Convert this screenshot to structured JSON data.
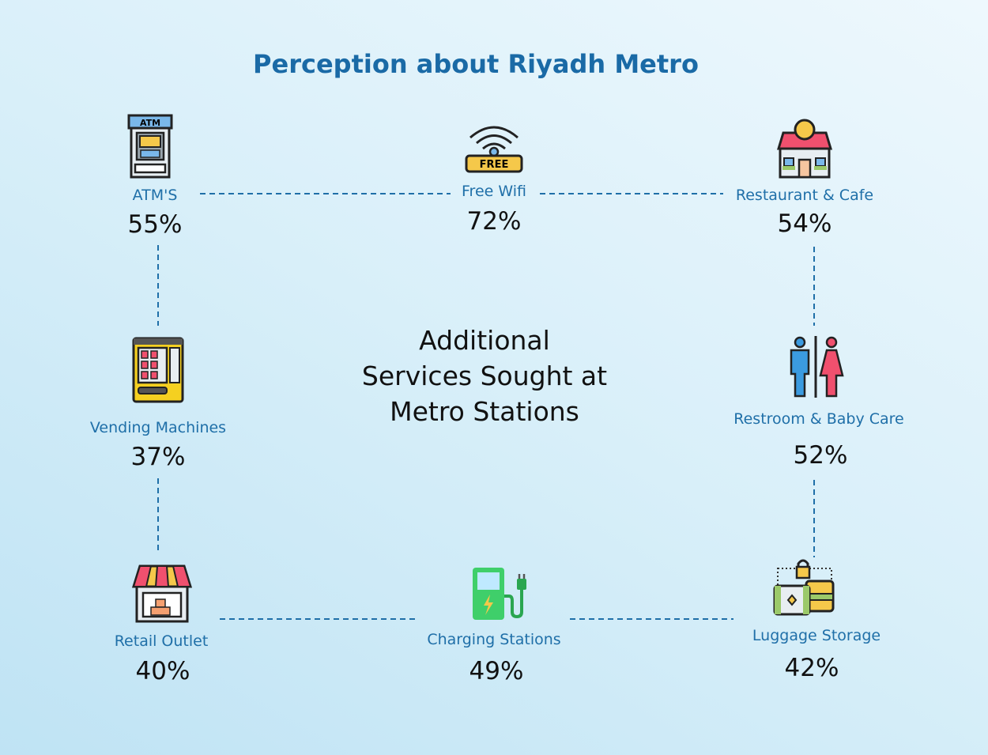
{
  "title": "Perception about Riyadh Metro",
  "center_text": [
    "Additional",
    "Services Sought at",
    "Metro Stations"
  ],
  "colors": {
    "title": "#1a6aa6",
    "label": "#1f6fa8",
    "value": "#111111",
    "connector": "#1f6fa8"
  },
  "services": [
    {
      "label": "ATM'S",
      "value": "55%",
      "icon": "atm-icon"
    },
    {
      "label": "Free Wifi",
      "value": "72%",
      "icon": "wifi-icon",
      "icon_text": "FREE"
    },
    {
      "label": "Restaurant & Cafe",
      "value": "54%",
      "icon": "restaurant-icon"
    },
    {
      "label": "Vending Machines",
      "value": "37%",
      "icon": "vending-machine-icon"
    },
    {
      "label": "Restroom & Baby Care",
      "value": "52%",
      "icon": "restroom-icon"
    },
    {
      "label": "Retail Outlet",
      "value": "40%",
      "icon": "store-icon"
    },
    {
      "label": "Charging Stations",
      "value": "49%",
      "icon": "charging-station-icon"
    },
    {
      "label": "Luggage Storage",
      "value": "42%",
      "icon": "luggage-icon"
    }
  ]
}
